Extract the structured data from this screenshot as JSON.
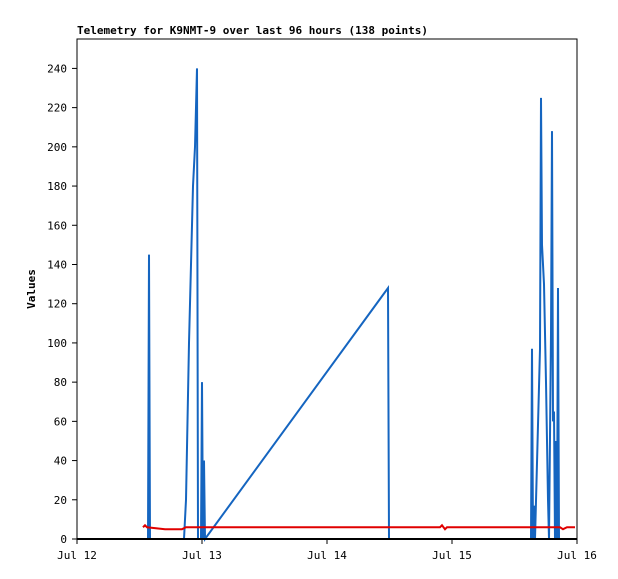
{
  "chart_data": {
    "type": "line",
    "title": "Telemetry for K9NMT-9 over last 96 hours (138 points)",
    "ylabel": "Values",
    "xlim": [
      12,
      16
    ],
    "xticks": [
      {
        "value": 12,
        "label": "Jul 12"
      },
      {
        "value": 13,
        "label": "Jul 13"
      },
      {
        "value": 14,
        "label": "Jul 14"
      },
      {
        "value": 15,
        "label": "Jul 15"
      },
      {
        "value": 16,
        "label": "Jul 16"
      }
    ],
    "ylim": [
      0,
      255
    ],
    "yticks": [
      0,
      20,
      40,
      60,
      80,
      100,
      120,
      140,
      160,
      180,
      200,
      220,
      240
    ],
    "series": [
      {
        "color": "#1565c0",
        "x": [
          12.568,
          12.576,
          12.584,
          12.856,
          12.872,
          12.896,
          12.928,
          12.944,
          12.96,
          12.968,
          12.992,
          13.0,
          13.008,
          13.016,
          13.024,
          14.488,
          14.496,
          15.632,
          15.64,
          15.648,
          15.656,
          15.664,
          15.704,
          15.712,
          15.72,
          15.736,
          15.752,
          15.768,
          15.776,
          15.792,
          15.8,
          15.808,
          15.816,
          15.824,
          15.832,
          15.84,
          15.848,
          15.856
        ],
        "values": [
          0,
          145,
          0,
          0,
          20,
          100,
          180,
          200,
          240,
          0,
          0,
          80,
          0,
          40,
          0,
          128,
          0,
          0,
          97,
          0,
          17,
          0,
          97,
          225,
          150,
          130,
          80,
          20,
          0,
          105,
          208,
          60,
          65,
          0,
          50,
          0,
          128,
          0
        ]
      },
      {
        "color": "#e00000",
        "x": [
          12.528,
          12.544,
          12.56,
          12.704,
          12.84,
          12.872,
          14.904,
          14.92,
          14.944,
          14.96,
          15.864,
          15.888,
          15.92,
          15.984
        ],
        "values": [
          6,
          7,
          6,
          5,
          5,
          6,
          6,
          7,
          5,
          6,
          6,
          5,
          6,
          6
        ]
      }
    ]
  }
}
